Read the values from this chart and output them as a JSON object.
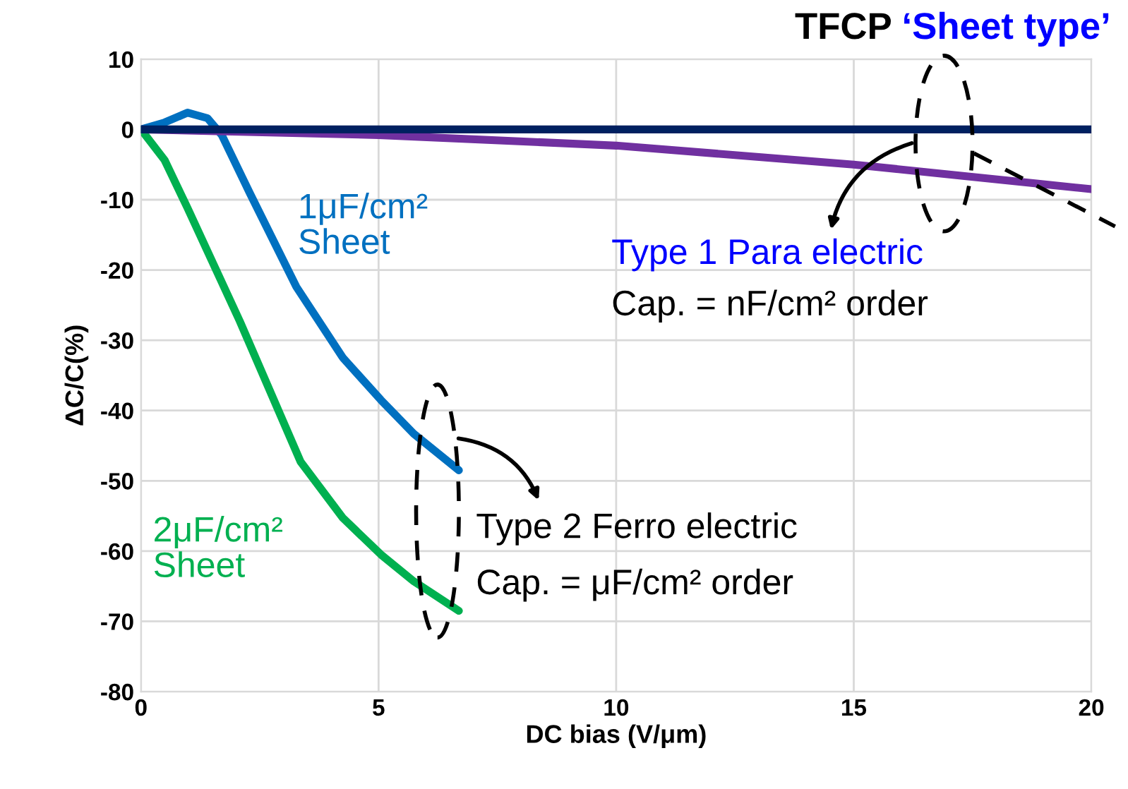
{
  "chart_data": {
    "type": "line",
    "title": "TFCP",
    "subtitle": "‘Sheet type’",
    "xlabel": "DC bias (V/μm)",
    "ylabel": "ΔC/C(%)",
    "xlim": [
      0,
      20
    ],
    "xticks": [
      0,
      5,
      10,
      15,
      20
    ],
    "ylim": [
      -80,
      10
    ],
    "yticks": [
      -80,
      -70,
      -60,
      -50,
      -40,
      -30,
      -20,
      -10,
      0,
      10
    ],
    "grid": true,
    "series": [
      {
        "name": "1μF/cm²\nSheet",
        "color": "#0070c0",
        "x": [
          0,
          0.5,
          0.98,
          1.4,
          1.7,
          2.3,
          3.27,
          4.25,
          5.05,
          5.74,
          6.69
        ],
        "values": [
          0,
          1,
          2.4,
          1.6,
          -0.8,
          -9.2,
          -22.4,
          -32.5,
          -38.5,
          -43.3,
          -48.5
        ]
      },
      {
        "name": "2μF/cm²\nSheet",
        "color": "#00b050",
        "x": [
          0,
          0.5,
          0.98,
          2.08,
          3.36,
          4.25,
          5.05,
          5.74,
          6.69
        ],
        "values": [
          0,
          -4.4,
          -11.2,
          -27.3,
          -47.3,
          -55.3,
          -60.5,
          -64.3,
          -68.5
        ]
      },
      {
        "color": "#7030a0",
        "x": [
          0,
          5,
          10,
          15,
          20
        ],
        "values": [
          0,
          -0.8,
          -2.3,
          -5.0,
          -8.5
        ]
      },
      {
        "color": "#002060",
        "x": [
          0,
          20
        ],
        "values": [
          0,
          0
        ]
      }
    ],
    "annotations": [
      "Type 1 Para electric",
      "Cap. = nF/cm² order",
      "Type 2 Ferro electric",
      "Cap. = μF/cm² order"
    ]
  }
}
